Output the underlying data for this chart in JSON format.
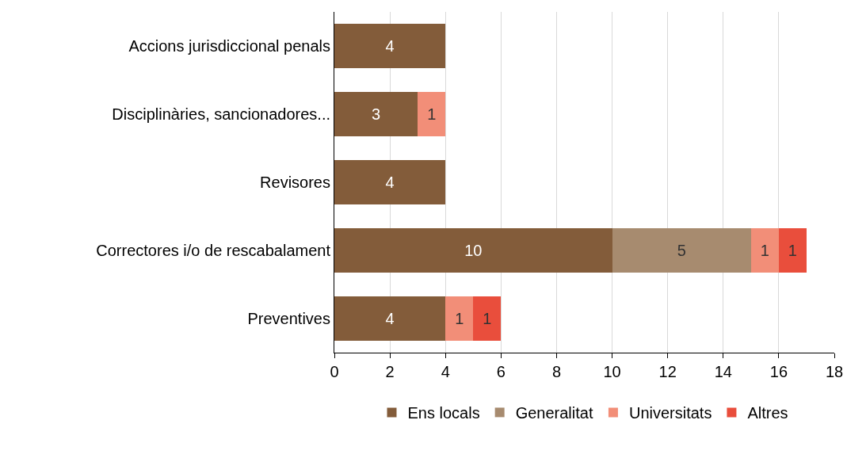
{
  "chart_data": {
    "type": "bar",
    "orientation": "horizontal",
    "stacked": true,
    "data_labels": true,
    "grid": "x",
    "legend": "bottom",
    "categories": [
      "Accions jurisdiccional penals",
      "Disciplinàries, sancionadores...",
      "Revisores",
      "Correctores i/o de rescabalament",
      "Preventives"
    ],
    "series": [
      {
        "name": "Ens locals",
        "color": "#835c3a",
        "values": [
          4,
          3,
          4,
          10,
          4
        ]
      },
      {
        "name": "Generalitat",
        "color": "#a78b6f",
        "values": [
          null,
          null,
          null,
          5,
          null
        ]
      },
      {
        "name": "Universitats",
        "color": "#f28e78",
        "values": [
          null,
          1,
          null,
          1,
          1
        ]
      },
      {
        "name": "Altres",
        "color": "#e94e3c",
        "values": [
          null,
          null,
          null,
          1,
          1
        ]
      }
    ],
    "xlim": [
      0,
      18
    ],
    "xticks": [
      0,
      2,
      4,
      6,
      8,
      10,
      12,
      14,
      16,
      18
    ]
  }
}
